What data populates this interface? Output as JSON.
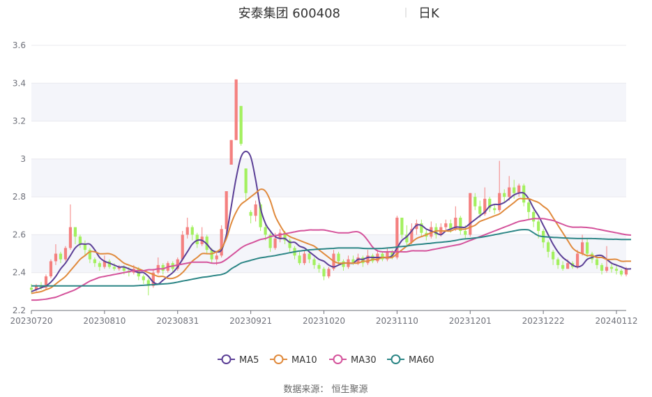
{
  "title": {
    "name": "安泰集团 600408",
    "period": "日K"
  },
  "source_text": "数据来源： 恒生聚源",
  "legend": [
    {
      "name": "MA5",
      "color": "#5b3f96"
    },
    {
      "name": "MA10",
      "color": "#e08a3c"
    },
    {
      "name": "MA30",
      "color": "#d4529b"
    },
    {
      "name": "MA60",
      "color": "#2b8585"
    }
  ],
  "colors": {
    "up": "#f4807f",
    "down": "#a3f05f",
    "band": "#f4f5fa",
    "grid": "#e8e8ee"
  },
  "chart_data": {
    "type": "candlestick",
    "title": "安泰集团 600408",
    "subtitle": "日K",
    "ylim": [
      2.2,
      3.6
    ],
    "yticks": [
      2.2,
      2.4,
      2.6,
      2.8,
      3,
      3.2,
      3.4,
      3.6
    ],
    "x_start": "2023-07-20",
    "x_ticks": [
      {
        "label": "20230720",
        "index": 0
      },
      {
        "label": "20230810",
        "index": 15
      },
      {
        "label": "20230831",
        "index": 30
      },
      {
        "label": "20230921",
        "index": 45
      },
      {
        "label": "20231020",
        "index": 60
      },
      {
        "label": "20231110",
        "index": 75
      },
      {
        "label": "20231201",
        "index": 90
      },
      {
        "label": "20231222",
        "index": 105
      },
      {
        "label": "20240112",
        "index": 120
      }
    ],
    "candles": [
      [
        2.32,
        2.31,
        2.34,
        2.29
      ],
      [
        2.31,
        2.33,
        2.34,
        2.3
      ],
      [
        2.33,
        2.32,
        2.35,
        2.31
      ],
      [
        2.32,
        2.38,
        2.39,
        2.31
      ],
      [
        2.38,
        2.46,
        2.47,
        2.37
      ],
      [
        2.46,
        2.5,
        2.55,
        2.44
      ],
      [
        2.5,
        2.47,
        2.51,
        2.45
      ],
      [
        2.47,
        2.53,
        2.54,
        2.46
      ],
      [
        2.53,
        2.64,
        2.76,
        2.52
      ],
      [
        2.64,
        2.59,
        2.62,
        2.55
      ],
      [
        2.59,
        2.55,
        2.6,
        2.53
      ],
      [
        2.55,
        2.52,
        2.57,
        2.49
      ],
      [
        2.52,
        2.47,
        2.53,
        2.45
      ],
      [
        2.47,
        2.45,
        2.48,
        2.43
      ],
      [
        2.45,
        2.43,
        2.46,
        2.41
      ],
      [
        2.43,
        2.46,
        2.49,
        2.42
      ],
      [
        2.46,
        2.43,
        2.47,
        2.42
      ],
      [
        2.43,
        2.42,
        2.45,
        2.41
      ],
      [
        2.42,
        2.43,
        2.44,
        2.41
      ],
      [
        2.43,
        2.41,
        2.44,
        2.39
      ],
      [
        2.41,
        2.4,
        2.43,
        2.38
      ],
      [
        2.4,
        2.42,
        2.44,
        2.39
      ],
      [
        2.42,
        2.38,
        2.43,
        2.36
      ],
      [
        2.38,
        2.36,
        2.39,
        2.34
      ],
      [
        2.36,
        2.33,
        2.37,
        2.28
      ],
      [
        2.33,
        2.4,
        2.42,
        2.32
      ],
      [
        2.4,
        2.44,
        2.48,
        2.39
      ],
      [
        2.44,
        2.41,
        2.45,
        2.39
      ],
      [
        2.41,
        2.45,
        2.46,
        2.4
      ],
      [
        2.45,
        2.42,
        2.46,
        2.4
      ],
      [
        2.42,
        2.47,
        2.48,
        2.41
      ],
      [
        2.47,
        2.6,
        2.62,
        2.46
      ],
      [
        2.6,
        2.64,
        2.69,
        2.58
      ],
      [
        2.64,
        2.6,
        2.65,
        2.57
      ],
      [
        2.6,
        2.55,
        2.61,
        2.53
      ],
      [
        2.55,
        2.59,
        2.64,
        2.54
      ],
      [
        2.59,
        2.52,
        2.6,
        2.5
      ],
      [
        2.52,
        2.47,
        2.53,
        2.45
      ],
      [
        2.47,
        2.49,
        2.51,
        2.44
      ],
      [
        2.49,
        2.63,
        2.65,
        2.48
      ],
      [
        2.63,
        2.83,
        2.83,
        2.61
      ],
      [
        2.97,
        3.1,
        3.1,
        2.97
      ],
      [
        3.1,
        3.42,
        3.42,
        3.1
      ],
      [
        3.28,
        3.08,
        3.28,
        3.07
      ],
      [
        2.95,
        2.82,
        2.95,
        2.78
      ],
      [
        2.72,
        2.7,
        2.73,
        2.66
      ],
      [
        2.7,
        2.76,
        2.78,
        2.67
      ],
      [
        2.76,
        2.64,
        2.77,
        2.62
      ],
      [
        2.64,
        2.6,
        2.66,
        2.57
      ],
      [
        2.6,
        2.53,
        2.61,
        2.51
      ],
      [
        2.53,
        2.58,
        2.61,
        2.52
      ],
      [
        2.58,
        2.61,
        2.63,
        2.56
      ],
      [
        2.61,
        2.57,
        2.62,
        2.55
      ],
      [
        2.57,
        2.53,
        2.58,
        2.51
      ],
      [
        2.53,
        2.49,
        2.54,
        2.47
      ],
      [
        2.49,
        2.45,
        2.51,
        2.44
      ],
      [
        2.45,
        2.5,
        2.52,
        2.44
      ],
      [
        2.5,
        2.47,
        2.51,
        2.45
      ],
      [
        2.47,
        2.44,
        2.48,
        2.42
      ],
      [
        2.44,
        2.42,
        2.45,
        2.4
      ],
      [
        2.42,
        2.38,
        2.43,
        2.36
      ],
      [
        2.38,
        2.42,
        2.43,
        2.37
      ],
      [
        2.42,
        2.5,
        2.52,
        2.41
      ],
      [
        2.5,
        2.46,
        2.51,
        2.44
      ],
      [
        2.46,
        2.43,
        2.47,
        2.41
      ],
      [
        2.43,
        2.47,
        2.49,
        2.42
      ],
      [
        2.47,
        2.45,
        2.49,
        2.44
      ],
      [
        2.45,
        2.48,
        2.5,
        2.44
      ],
      [
        2.48,
        2.45,
        2.49,
        2.43
      ],
      [
        2.45,
        2.49,
        2.52,
        2.44
      ],
      [
        2.49,
        2.46,
        2.5,
        2.45
      ],
      [
        2.46,
        2.5,
        2.52,
        2.45
      ],
      [
        2.5,
        2.47,
        2.51,
        2.46
      ],
      [
        2.47,
        2.51,
        2.53,
        2.46
      ],
      [
        2.51,
        2.48,
        2.52,
        2.47
      ],
      [
        2.48,
        2.69,
        2.7,
        2.47
      ],
      [
        2.69,
        2.6,
        2.69,
        2.58
      ],
      [
        2.6,
        2.56,
        2.65,
        2.54
      ],
      [
        2.56,
        2.63,
        2.66,
        2.55
      ],
      [
        2.63,
        2.66,
        2.68,
        2.6
      ],
      [
        2.66,
        2.61,
        2.68,
        2.59
      ],
      [
        2.61,
        2.59,
        2.63,
        2.57
      ],
      [
        2.59,
        2.64,
        2.67,
        2.58
      ],
      [
        2.64,
        2.6,
        2.66,
        2.58
      ],
      [
        2.6,
        2.64,
        2.66,
        2.59
      ],
      [
        2.64,
        2.66,
        2.68,
        2.62
      ],
      [
        2.66,
        2.63,
        2.68,
        2.61
      ],
      [
        2.63,
        2.69,
        2.75,
        2.62
      ],
      [
        2.69,
        2.62,
        2.7,
        2.6
      ],
      [
        2.62,
        2.6,
        2.65,
        2.58
      ],
      [
        2.6,
        2.82,
        2.82,
        2.59
      ],
      [
        2.8,
        2.75,
        2.82,
        2.73
      ],
      [
        2.75,
        2.71,
        2.78,
        2.69
      ],
      [
        2.71,
        2.79,
        2.85,
        2.7
      ],
      [
        2.79,
        2.74,
        2.8,
        2.72
      ],
      [
        2.74,
        2.73,
        2.76,
        2.71
      ],
      [
        2.73,
        2.82,
        2.99,
        2.72
      ],
      [
        2.82,
        2.8,
        2.84,
        2.77
      ],
      [
        2.8,
        2.85,
        2.91,
        2.78
      ],
      [
        2.85,
        2.82,
        2.89,
        2.79
      ],
      [
        2.82,
        2.86,
        2.87,
        2.8
      ],
      [
        2.86,
        2.77,
        2.87,
        2.75
      ],
      [
        2.77,
        2.72,
        2.78,
        2.68
      ],
      [
        2.72,
        2.67,
        2.73,
        2.64
      ],
      [
        2.67,
        2.62,
        2.68,
        2.58
      ],
      [
        2.62,
        2.56,
        2.63,
        2.53
      ],
      [
        2.56,
        2.51,
        2.57,
        2.48
      ],
      [
        2.51,
        2.47,
        2.52,
        2.44
      ],
      [
        2.47,
        2.44,
        2.48,
        2.42
      ],
      [
        2.44,
        2.42,
        2.46,
        2.41
      ],
      [
        2.42,
        2.45,
        2.47,
        2.42
      ],
      [
        2.45,
        2.43,
        2.46,
        2.42
      ],
      [
        2.43,
        2.5,
        2.52,
        2.42
      ],
      [
        2.5,
        2.56,
        2.6,
        2.49
      ],
      [
        2.56,
        2.5,
        2.58,
        2.48
      ],
      [
        2.5,
        2.47,
        2.51,
        2.45
      ],
      [
        2.47,
        2.44,
        2.49,
        2.42
      ],
      [
        2.44,
        2.41,
        2.45,
        2.39
      ],
      [
        2.41,
        2.43,
        2.54,
        2.4
      ],
      [
        2.43,
        2.42,
        2.45,
        2.4
      ],
      [
        2.42,
        2.41,
        2.44,
        2.39
      ],
      [
        2.41,
        2.39,
        2.42,
        2.38
      ],
      [
        2.39,
        2.42,
        2.43,
        2.38
      ]
    ],
    "ma5": [
      2.3,
      2.31,
      2.32,
      2.33,
      2.35,
      2.38,
      2.42,
      2.45,
      2.49,
      2.53,
      2.55,
      2.55,
      2.55,
      2.52,
      2.48,
      2.46,
      2.45,
      2.44,
      2.43,
      2.43,
      2.42,
      2.41,
      2.4,
      2.4,
      2.38,
      2.35,
      2.34,
      2.36,
      2.38,
      2.4,
      2.43,
      2.47,
      2.51,
      2.55,
      2.57,
      2.57,
      2.55,
      2.52,
      2.51,
      2.52,
      2.6,
      2.75,
      2.9,
      3.01,
      3.04,
      3.01,
      2.89,
      2.74,
      2.66,
      2.62,
      2.59,
      2.58,
      2.58,
      2.56,
      2.56,
      2.54,
      2.53,
      2.51,
      2.49,
      2.47,
      2.46,
      2.44,
      2.43,
      2.44,
      2.45,
      2.45,
      2.45,
      2.47,
      2.47,
      2.48,
      2.48,
      2.48,
      2.48,
      2.48,
      2.49,
      2.53,
      2.57,
      2.59,
      2.62,
      2.65,
      2.65,
      2.63,
      2.62,
      2.61,
      2.6,
      2.62,
      2.63,
      2.64,
      2.64,
      2.64,
      2.66,
      2.68,
      2.7,
      2.72,
      2.75,
      2.76,
      2.76,
      2.77,
      2.79,
      2.81,
      2.82,
      2.82,
      2.79,
      2.74,
      2.7,
      2.65,
      2.6,
      2.55,
      2.51,
      2.48,
      2.46,
      2.44,
      2.43,
      2.44,
      2.47,
      2.48,
      2.49,
      2.49,
      2.47,
      2.45,
      2.44,
      2.43,
      2.42,
      2.42
    ],
    "ma10": [
      2.29,
      2.295,
      2.3,
      2.31,
      2.32,
      2.34,
      2.36,
      2.38,
      2.41,
      2.44,
      2.47,
      2.49,
      2.51,
      2.51,
      2.5,
      2.5,
      2.5,
      2.49,
      2.47,
      2.45,
      2.44,
      2.43,
      2.42,
      2.41,
      2.4,
      2.39,
      2.38,
      2.38,
      2.37,
      2.37,
      2.38,
      2.4,
      2.43,
      2.46,
      2.48,
      2.5,
      2.5,
      2.5,
      2.51,
      2.53,
      2.58,
      2.66,
      2.72,
      2.76,
      2.78,
      2.8,
      2.82,
      2.84,
      2.83,
      2.78,
      2.7,
      2.65,
      2.61,
      2.59,
      2.58,
      2.57,
      2.56,
      2.55,
      2.54,
      2.52,
      2.5,
      2.48,
      2.46,
      2.45,
      2.45,
      2.45,
      2.45,
      2.45,
      2.46,
      2.46,
      2.47,
      2.47,
      2.48,
      2.48,
      2.48,
      2.5,
      2.52,
      2.54,
      2.56,
      2.58,
      2.59,
      2.6,
      2.61,
      2.62,
      2.62,
      2.62,
      2.62,
      2.63,
      2.63,
      2.63,
      2.64,
      2.65,
      2.67,
      2.68,
      2.69,
      2.7,
      2.71,
      2.73,
      2.75,
      2.77,
      2.79,
      2.79,
      2.79,
      2.78,
      2.77,
      2.75,
      2.73,
      2.69,
      2.65,
      2.61,
      2.57,
      2.53,
      2.51,
      2.5,
      2.49,
      2.49,
      2.48,
      2.48,
      2.47,
      2.47,
      2.47,
      2.46,
      2.46,
      2.46
    ],
    "ma30": [
      2.255,
      2.255,
      2.257,
      2.26,
      2.265,
      2.27,
      2.28,
      2.29,
      2.3,
      2.31,
      2.325,
      2.34,
      2.355,
      2.365,
      2.375,
      2.38,
      2.385,
      2.39,
      2.395,
      2.4,
      2.405,
      2.41,
      2.41,
      2.41,
      2.415,
      2.415,
      2.42,
      2.42,
      2.43,
      2.435,
      2.44,
      2.445,
      2.45,
      2.455,
      2.455,
      2.455,
      2.455,
      2.45,
      2.45,
      2.455,
      2.47,
      2.49,
      2.51,
      2.53,
      2.545,
      2.555,
      2.565,
      2.575,
      2.58,
      2.59,
      2.595,
      2.6,
      2.605,
      2.61,
      2.615,
      2.62,
      2.622,
      2.625,
      2.625,
      2.625,
      2.625,
      2.62,
      2.615,
      2.61,
      2.61,
      2.61,
      2.615,
      2.615,
      2.6,
      2.57,
      2.535,
      2.515,
      2.51,
      2.51,
      2.51,
      2.51,
      2.51,
      2.51,
      2.515,
      2.515,
      2.515,
      2.515,
      2.52,
      2.525,
      2.53,
      2.535,
      2.54,
      2.545,
      2.55,
      2.56,
      2.57,
      2.58,
      2.59,
      2.6,
      2.61,
      2.62,
      2.63,
      2.64,
      2.65,
      2.66,
      2.67,
      2.675,
      2.68,
      2.685,
      2.685,
      2.685,
      2.68,
      2.675,
      2.665,
      2.655,
      2.645,
      2.64,
      2.64,
      2.64,
      2.638,
      2.635,
      2.63,
      2.625,
      2.62,
      2.615,
      2.61,
      2.605,
      2.6,
      2.598
    ],
    "ma60": [
      2.33,
      2.33,
      2.33,
      2.33,
      2.33,
      2.33,
      2.33,
      2.33,
      2.33,
      2.33,
      2.33,
      2.33,
      2.33,
      2.33,
      2.33,
      2.33,
      2.33,
      2.33,
      2.33,
      2.33,
      2.33,
      2.33,
      2.332,
      2.333,
      2.335,
      2.336,
      2.338,
      2.34,
      2.342,
      2.345,
      2.35,
      2.355,
      2.36,
      2.365,
      2.37,
      2.375,
      2.378,
      2.382,
      2.386,
      2.39,
      2.4,
      2.42,
      2.435,
      2.45,
      2.458,
      2.465,
      2.472,
      2.478,
      2.482,
      2.486,
      2.49,
      2.495,
      2.5,
      2.505,
      2.51,
      2.514,
      2.517,
      2.52,
      2.522,
      2.524,
      2.525,
      2.527,
      2.528,
      2.53,
      2.53,
      2.53,
      2.53,
      2.53,
      2.528,
      2.527,
      2.527,
      2.527,
      2.528,
      2.53,
      2.532,
      2.535,
      2.538,
      2.54,
      2.545,
      2.548,
      2.55,
      2.553,
      2.555,
      2.558,
      2.56,
      2.563,
      2.566,
      2.57,
      2.575,
      2.578,
      2.58,
      2.583,
      2.586,
      2.59,
      2.595,
      2.6,
      2.605,
      2.61,
      2.615,
      2.62,
      2.625,
      2.627,
      2.625,
      2.61,
      2.595,
      2.59,
      2.588,
      2.586,
      2.585,
      2.583,
      2.582,
      2.581,
      2.58,
      2.58,
      2.58,
      2.58,
      2.579,
      2.578,
      2.577,
      2.576,
      2.576,
      2.575,
      2.575,
      2.575
    ]
  }
}
